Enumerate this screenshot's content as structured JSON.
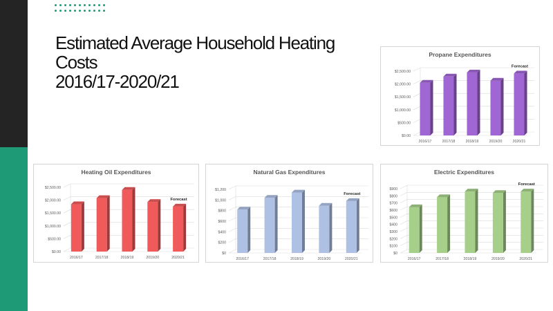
{
  "slide": {
    "title_lines": [
      "Estimated Average Household Heating",
      "Costs",
      "2016/17-2020/21"
    ],
    "accent_color": "#1f9a77",
    "sidebar_dark_color": "#242424"
  },
  "chart_data": [
    {
      "id": "propane",
      "type": "bar",
      "title": "Propane Expenditures",
      "annotation": "Forecast",
      "categories": [
        "2016/17",
        "2017/18",
        "2018/19",
        "2019/20",
        "2020/21"
      ],
      "values": [
        2050,
        2290,
        2450,
        2130,
        2410
      ],
      "y_ticks": [
        "$0.00",
        "$500.00",
        "$1,000.00",
        "$1,500.00",
        "$2,000.00",
        "$2,500.00"
      ],
      "ylim": [
        0,
        2500
      ],
      "color": "#a066d3",
      "grid": true
    },
    {
      "id": "heating-oil",
      "type": "bar",
      "title": "Heating Oil Expenditures",
      "annotation": "Forecast",
      "categories": [
        "2016/17",
        "2017/18",
        "2018/19",
        "2019/20",
        "2020/21"
      ],
      "values": [
        1840,
        2080,
        2400,
        1930,
        1750
      ],
      "y_ticks": [
        "$0.00",
        "$500.00",
        "$1,000.00",
        "$1,500.00",
        "$2,000.00",
        "$2,500.00"
      ],
      "ylim": [
        0,
        2500
      ],
      "color": "#f05a5a",
      "grid": true
    },
    {
      "id": "natural-gas",
      "type": "bar",
      "title": "Natural Gas Expenditures",
      "annotation": "Forecast",
      "categories": [
        "2016/17",
        "2017/18",
        "2018/19",
        "2019/20",
        "2020/21"
      ],
      "values": [
        820,
        1040,
        1140,
        890,
        980
      ],
      "y_ticks": [
        "$0",
        "$200",
        "$400",
        "$600",
        "$800",
        "$1,000",
        "$1,200"
      ],
      "ylim": [
        0,
        1200
      ],
      "color": "#aec0e3",
      "grid": true
    },
    {
      "id": "electric",
      "type": "bar",
      "title": "Electric Expenditures",
      "annotation": "Forecast",
      "categories": [
        "2016/17",
        "2017/18",
        "2018/19",
        "2019/20",
        "2020/21"
      ],
      "values": [
        640,
        780,
        860,
        840,
        860
      ],
      "y_ticks": [
        "$0",
        "$100",
        "$200",
        "$300",
        "$400",
        "$500",
        "$600",
        "$700",
        "$800",
        "$900"
      ],
      "ylim": [
        0,
        900
      ],
      "color": "#a6d08a",
      "grid": true
    }
  ]
}
